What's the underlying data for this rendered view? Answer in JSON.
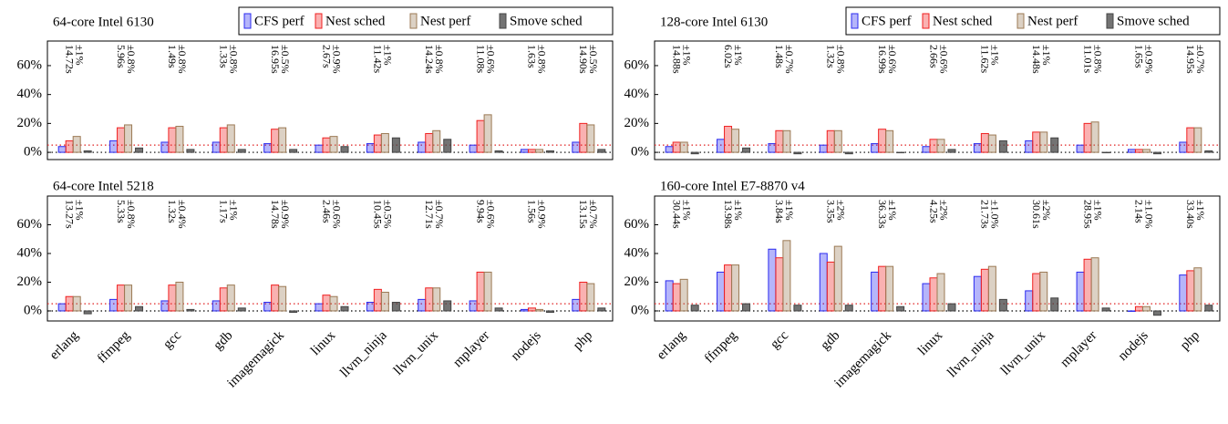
{
  "chart_data": [
    {
      "type": "bar",
      "title": "64-core Intel 6130",
      "legend": "top-right",
      "ylim": [
        -5,
        77
      ],
      "yticks": [
        {
          "value": 0,
          "label": "0%"
        },
        {
          "value": 20,
          "label": "20%"
        },
        {
          "value": 40,
          "label": "40%"
        },
        {
          "value": 60,
          "label": "60%"
        }
      ],
      "ref_lines": [
        {
          "value": 5,
          "color": "#e02020"
        },
        {
          "value": 0,
          "color": "#000000"
        }
      ],
      "series": [
        {
          "name": "CFS perf",
          "color": "#2b2bf0",
          "values": [
            4,
            8,
            7,
            7,
            6,
            5,
            6,
            7,
            5,
            2,
            7
          ]
        },
        {
          "name": "Nest sched",
          "color": "#f02020",
          "values": [
            8,
            17,
            17,
            17,
            16,
            10,
            12,
            13,
            22,
            2,
            20
          ]
        },
        {
          "name": "Nest perf",
          "color": "#9c7a55",
          "values": [
            11,
            19,
            18,
            19,
            17,
            11,
            13,
            15,
            26,
            2,
            19
          ]
        },
        {
          "name": "Smove sched",
          "color": "#444444",
          "values": [
            1,
            3,
            2,
            2,
            2,
            4,
            10,
            9,
            1,
            1,
            2
          ]
        }
      ],
      "annotations": [
        [
          "14.72s",
          "±1%"
        ],
        [
          "5.96s",
          "±0.8%"
        ],
        [
          "1.49s",
          "±0.8%"
        ],
        [
          "1.33s",
          "±0.8%"
        ],
        [
          "16.95s",
          "±0.5%"
        ],
        [
          "2.67s",
          "±0.9%"
        ],
        [
          "11.42s",
          "±1%"
        ],
        [
          "14.24s",
          "±0.8%"
        ],
        [
          "11.08s",
          "±0.6%"
        ],
        [
          "1.63s",
          "±0.8%"
        ],
        [
          "14.90s",
          "±0.5%"
        ]
      ]
    },
    {
      "type": "bar",
      "title": "128-core Intel 6130",
      "legend": "top-right",
      "ylim": [
        -5,
        77
      ],
      "yticks": [
        {
          "value": 0,
          "label": "0%"
        },
        {
          "value": 20,
          "label": "20%"
        },
        {
          "value": 40,
          "label": "40%"
        },
        {
          "value": 60,
          "label": "60%"
        }
      ],
      "ref_lines": [
        {
          "value": 5,
          "color": "#e02020"
        },
        {
          "value": 0,
          "color": "#000000"
        }
      ],
      "series": [
        {
          "name": "CFS perf",
          "color": "#2b2bf0",
          "values": [
            4,
            9,
            6,
            5,
            6,
            4,
            6,
            8,
            5,
            2,
            7
          ]
        },
        {
          "name": "Nest sched",
          "color": "#f02020",
          "values": [
            7,
            18,
            15,
            15,
            16,
            9,
            13,
            14,
            20,
            2,
            17
          ]
        },
        {
          "name": "Nest perf",
          "color": "#9c7a55",
          "values": [
            7,
            16,
            15,
            15,
            15,
            9,
            12,
            14,
            21,
            2,
            17
          ]
        },
        {
          "name": "Smove sched",
          "color": "#444444",
          "values": [
            -1,
            3,
            -1,
            -1,
            0,
            2,
            8,
            10,
            0,
            -1,
            1
          ]
        }
      ],
      "annotations": [
        [
          "14.88s",
          "±1%"
        ],
        [
          "6.02s",
          "±1%"
        ],
        [
          "1.48s",
          "±0.7%"
        ],
        [
          "1.32s",
          "±0.8%"
        ],
        [
          "16.99s",
          "±0.6%"
        ],
        [
          "2.66s",
          "±0.6%"
        ],
        [
          "11.62s",
          "±1%"
        ],
        [
          "14.48s",
          "±1%"
        ],
        [
          "11.01s",
          "±0.8%"
        ],
        [
          "1.65s",
          "±0.9%"
        ],
        [
          "14.95s",
          "±0.7%"
        ]
      ]
    },
    {
      "type": "bar",
      "title": "64-core Intel 5218",
      "categories": [
        "erlang",
        "ffmpeg",
        "gcc",
        "gdb",
        "imagemagick",
        "linux",
        "llvm_ninja",
        "llvm_unix",
        "mplayer",
        "nodejs",
        "php"
      ],
      "ylim": [
        -7,
        80
      ],
      "yticks": [
        {
          "value": 0,
          "label": "0%"
        },
        {
          "value": 20,
          "label": "20%"
        },
        {
          "value": 40,
          "label": "40%"
        },
        {
          "value": 60,
          "label": "60%"
        }
      ],
      "ref_lines": [
        {
          "value": 5,
          "color": "#e02020"
        },
        {
          "value": 0,
          "color": "#000000"
        }
      ],
      "series": [
        {
          "color": "#2b2bf0",
          "values": [
            5,
            8,
            7,
            7,
            6,
            5,
            6,
            8,
            7,
            1,
            8
          ]
        },
        {
          "color": "#f02020",
          "values": [
            10,
            18,
            18,
            16,
            18,
            11,
            15,
            16,
            27,
            2,
            20
          ]
        },
        {
          "color": "#9c7a55",
          "values": [
            10,
            18,
            20,
            18,
            17,
            10,
            13,
            16,
            27,
            1,
            19
          ]
        },
        {
          "color": "#444444",
          "values": [
            -2,
            3,
            1,
            2,
            -1,
            3,
            6,
            7,
            2,
            -1,
            2
          ]
        }
      ],
      "annotations": [
        [
          "13.27s",
          "±1%"
        ],
        [
          "5.33s",
          "±0.8%"
        ],
        [
          "1.32s",
          "±0.4%"
        ],
        [
          "1.17s",
          "±1%"
        ],
        [
          "14.78s",
          "±0.9%"
        ],
        [
          "2.46s",
          "±0.6%"
        ],
        [
          "10.45s",
          "±0.5%"
        ],
        [
          "12.71s",
          "±0.7%"
        ],
        [
          "9.94s",
          "±0.6%"
        ],
        [
          "1.56s",
          "±0.9%"
        ],
        [
          "13.15s",
          "±0.7%"
        ]
      ]
    },
    {
      "type": "bar",
      "title": "160-core Intel E7-8870 v4",
      "categories": [
        "erlang",
        "ffmpeg",
        "gcc",
        "gdb",
        "imagemagick",
        "linux",
        "llvm_ninja",
        "llvm_unix",
        "mplayer",
        "nodejs",
        "php"
      ],
      "ylim": [
        -7,
        80
      ],
      "yticks": [
        {
          "value": 0,
          "label": "0%"
        },
        {
          "value": 20,
          "label": "20%"
        },
        {
          "value": 40,
          "label": "40%"
        },
        {
          "value": 60,
          "label": "60%"
        }
      ],
      "ref_lines": [
        {
          "value": 5,
          "color": "#e02020"
        },
        {
          "value": 0,
          "color": "#000000"
        }
      ],
      "series": [
        {
          "color": "#2b2bf0",
          "values": [
            21,
            27,
            43,
            40,
            27,
            19,
            24,
            14,
            27,
            0,
            25
          ]
        },
        {
          "color": "#f02020",
          "values": [
            19,
            32,
            37,
            34,
            31,
            23,
            29,
            26,
            36,
            3,
            28
          ]
        },
        {
          "color": "#9c7a55",
          "values": [
            22,
            32,
            49,
            45,
            31,
            26,
            31,
            27,
            37,
            3,
            30
          ]
        },
        {
          "color": "#444444",
          "values": [
            4,
            5,
            4,
            4,
            3,
            5,
            8,
            9,
            2,
            -3,
            4
          ]
        }
      ],
      "annotations": [
        [
          "30.44s",
          "±1%"
        ],
        [
          "13.98s",
          "±1%"
        ],
        [
          "3.84s",
          "±1%"
        ],
        [
          "3.35s",
          "±2%"
        ],
        [
          "36.33s",
          "±1%"
        ],
        [
          "4.25s",
          "±2%"
        ],
        [
          "21.73s",
          "±1.0%"
        ],
        [
          "30.61s",
          "±2%"
        ],
        [
          "28.95s",
          "±1%"
        ],
        [
          "2.14s",
          "±1.0%"
        ],
        [
          "33.40s",
          "±1%"
        ]
      ]
    }
  ]
}
